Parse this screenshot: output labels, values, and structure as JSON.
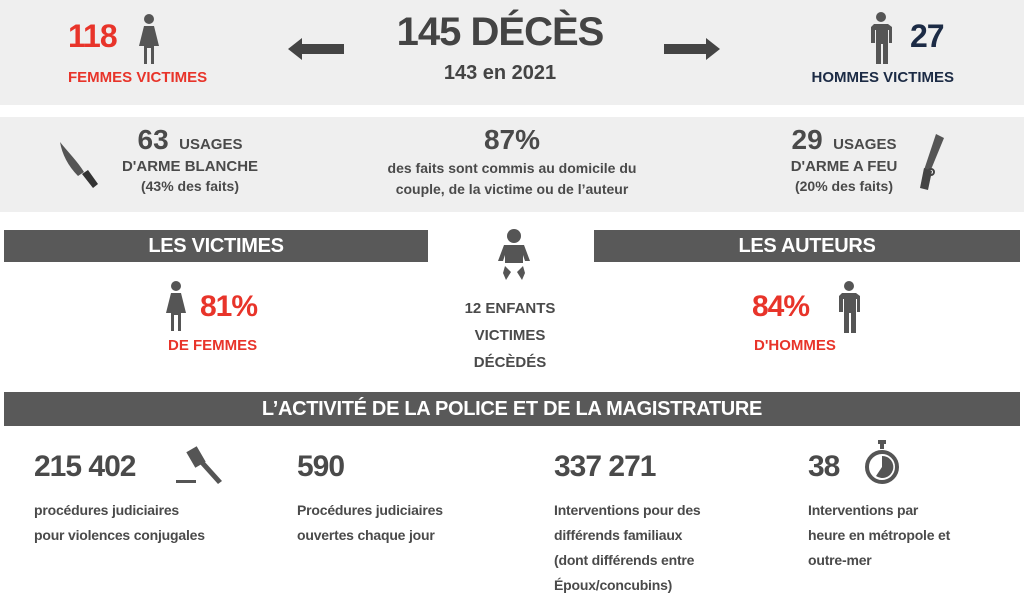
{
  "top": {
    "women_count": "118",
    "women_label": "FEMMES VICTIMES",
    "total": "145 DÉCÈS",
    "previous": "143 en 2021",
    "men_count": "27",
    "men_label": "HOMMES VICTIMES"
  },
  "weapons": {
    "knife_count": "63",
    "knife_unit": "USAGES",
    "knife_label": "D'ARME BLANCHE",
    "knife_pct": "(43% des faits)",
    "home_pct": "87%",
    "home_line1": "des faits sont commis au domicile du",
    "home_line2": "couple, de la victime ou de l’auteur",
    "gun_count": "29",
    "gun_unit": "USAGES",
    "gun_label": "D'ARME A FEU",
    "gun_pct": "(20% des faits)"
  },
  "victims": {
    "title": "LES VICTIMES",
    "pct": "81%",
    "label": "DE FEMMES"
  },
  "children": {
    "line1": "12 ENFANTS",
    "line2": "VICTIMES",
    "line3": "DÉCÈDÉS"
  },
  "authors": {
    "title": "LES AUTEURS",
    "pct": "84%",
    "label": "D'HOMMES"
  },
  "police": {
    "title": "L’ACTIVITÉ DE LA POLICE ET DE LA MAGISTRATURE",
    "stats": [
      {
        "value": "215 402",
        "lines": [
          "procédures judiciaires",
          "pour violences conjugales"
        ],
        "icon": "gavel-icon"
      },
      {
        "value": "590",
        "lines": [
          "Procédures judiciaires",
          "ouvertes chaque jour"
        ]
      },
      {
        "value": "337 271",
        "lines": [
          "Interventions pour des",
          "différends familiaux",
          "(dont différends entre",
          "Époux/concubins)"
        ]
      },
      {
        "value": "38",
        "lines": [
          "Interventions par",
          "heure en métropole et",
          "outre-mer"
        ],
        "icon": "stopwatch-icon"
      }
    ]
  },
  "colors": {
    "red": "#e8342a",
    "navy": "#1c2b45",
    "dark": "#4a4a4a",
    "banner": "#595959",
    "band": "#efefef"
  }
}
